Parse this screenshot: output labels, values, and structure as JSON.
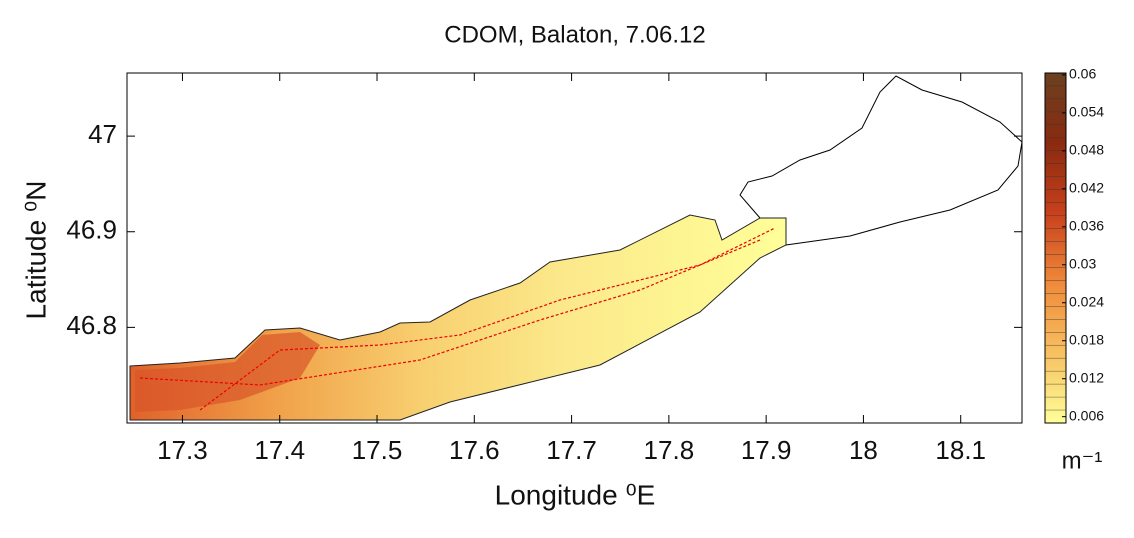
{
  "chart_data": {
    "type": "contour",
    "title": "CDOM, Balaton, 7.06.12",
    "x_label": "Longitude ⁰E",
    "y_label": "Latitude ⁰N",
    "xlim": [
      17.243,
      18.163
    ],
    "ylim": [
      46.7,
      47.066
    ],
    "xticks": [
      17.3,
      17.4,
      17.5,
      17.6,
      17.7,
      17.8,
      17.9,
      18,
      18.1
    ],
    "yticks": [
      46.8,
      46.9,
      47
    ],
    "colorbar": {
      "label": "m⁻¹",
      "clim": [
        0.005,
        0.0603
      ],
      "ticks": [
        0.006,
        0.012,
        0.018,
        0.024,
        0.03,
        0.036,
        0.042,
        0.048,
        0.054,
        0.06
      ],
      "colors": [
        "#ffff99",
        "#f7c060",
        "#ef8a3a",
        "#c8401c",
        "#8a2a10",
        "#6b4020"
      ]
    }
  }
}
